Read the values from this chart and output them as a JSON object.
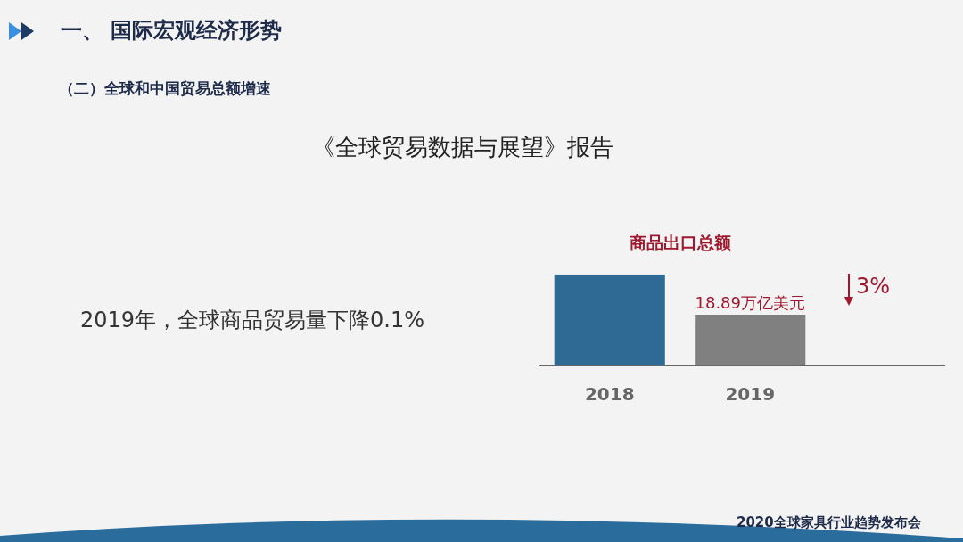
{
  "chart_data": {
    "type": "bar",
    "title": "商品出口总额",
    "categories": [
      "2018",
      "2019"
    ],
    "series": [
      {
        "colors": [
          "#2e6a94",
          "#808080"
        ],
        "values": [
          33.8,
          18.89
        ],
        "value_labels": [
          null,
          "18.89万亿美元"
        ]
      }
    ],
    "grid": false,
    "legend": false,
    "annotations": [
      "一、 国际宏观经济形势",
      "（二）全球和中国贸易总额增速",
      "《全球贸易数据与展望》报告",
      "2019年，全球商品贸易量下降0.1%",
      "3%",
      "2020全球家具行业趋势发布会"
    ]
  }
}
